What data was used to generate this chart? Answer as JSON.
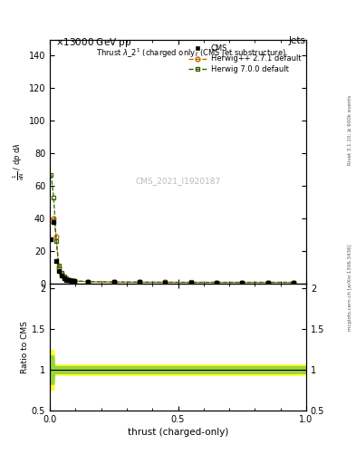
{
  "watermark": "CMS_2021_I1920187",
  "rivet_text": "Rivet 3.1.10; ≥ 600k events",
  "mcplots_text": "mcplots.cern.ch [arXiv:1306.3436]",
  "ylim_main": [
    0,
    150
  ],
  "ylim_ratio": [
    0.5,
    2.05
  ],
  "xlim": [
    0,
    1
  ],
  "cms_x": [
    0.005,
    0.015,
    0.025,
    0.035,
    0.045,
    0.055,
    0.065,
    0.075,
    0.085,
    0.095,
    0.15,
    0.25,
    0.35,
    0.45,
    0.55,
    0.65,
    0.75,
    0.85,
    0.95
  ],
  "cms_y": [
    27.0,
    38.0,
    14.0,
    8.0,
    5.0,
    3.5,
    2.5,
    2.0,
    1.8,
    1.5,
    1.2,
    1.0,
    0.9,
    0.8,
    0.8,
    0.8,
    0.8,
    0.8,
    0.8
  ],
  "hpp_x": [
    0.005,
    0.015,
    0.025,
    0.035,
    0.045,
    0.055,
    0.065,
    0.075,
    0.085,
    0.095,
    0.15,
    0.25,
    0.35,
    0.45,
    0.55,
    0.65,
    0.75,
    0.85,
    0.95
  ],
  "hpp_y": [
    39.0,
    40.0,
    29.0,
    10.0,
    6.0,
    4.0,
    3.0,
    2.2,
    1.9,
    1.6,
    1.2,
    1.0,
    0.9,
    0.85,
    0.8,
    0.8,
    0.8,
    0.8,
    0.8
  ],
  "h700_x": [
    0.005,
    0.015,
    0.025,
    0.035,
    0.045,
    0.055,
    0.065,
    0.075,
    0.085,
    0.095,
    0.15,
    0.25,
    0.35,
    0.45,
    0.55,
    0.65,
    0.75,
    0.85,
    0.95
  ],
  "h700_y": [
    67.0,
    53.0,
    26.0,
    11.0,
    6.5,
    4.5,
    3.2,
    2.4,
    2.0,
    1.7,
    1.3,
    1.05,
    0.95,
    0.88,
    0.85,
    0.82,
    0.82,
    0.82,
    0.82
  ],
  "hpp_color": "#cc6600",
  "h700_color": "#336600",
  "cms_color": "#000000",
  "ratio_band_yellow": "#ffff00",
  "ratio_band_green": "#88cc44",
  "bg_color": "#ffffff"
}
